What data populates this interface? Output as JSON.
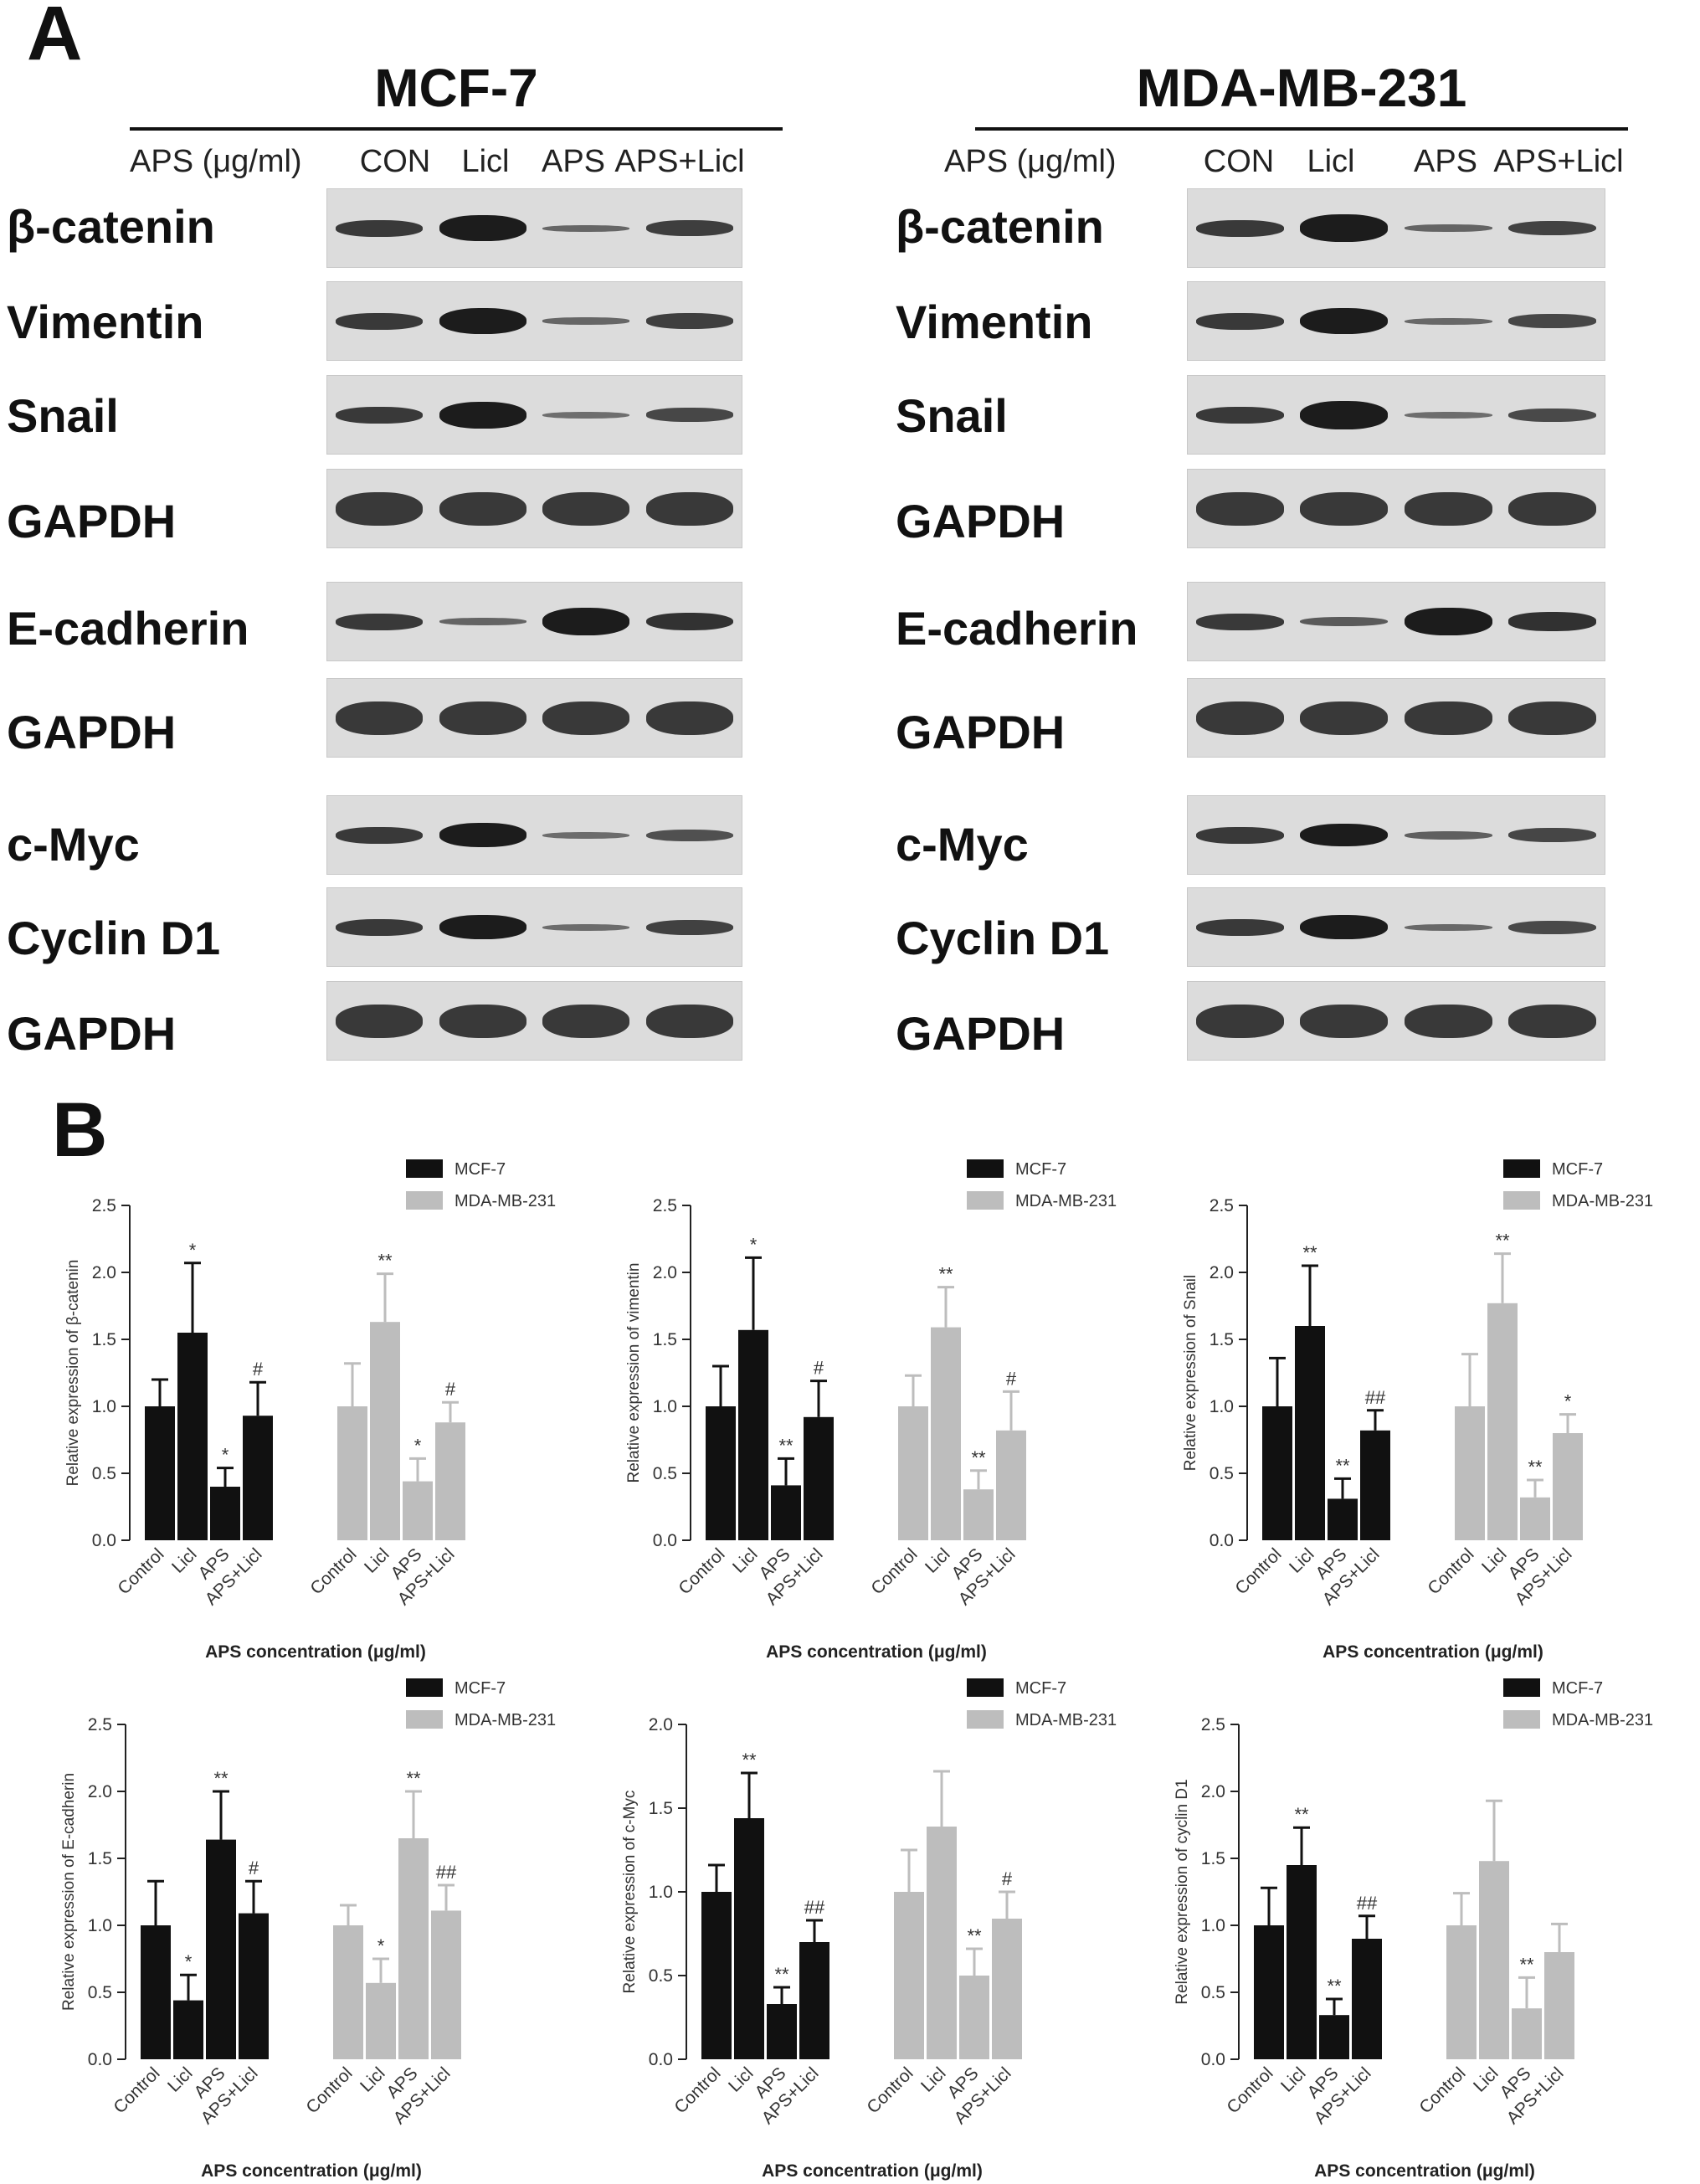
{
  "panel_a": {
    "letter": "A",
    "cells": [
      {
        "title": "MCF-7",
        "aps_label": "APS (μg/ml)",
        "lanes": [
          "CON",
          "Licl",
          "APS",
          "APS+Licl"
        ],
        "groups": [
          {
            "proteins": [
              "β-catenin",
              "Vimentin",
              "Snail",
              "GAPDH"
            ]
          },
          {
            "proteins": [
              "E-cadherin",
              "GAPDH"
            ]
          },
          {
            "proteins": [
              "c-Myc",
              "Cyclin D1",
              "GAPDH"
            ]
          }
        ]
      },
      {
        "title": "MDA-MB-231",
        "aps_label": "APS (μg/ml)",
        "lanes": [
          "CON",
          "Licl",
          "APS",
          "APS+Licl"
        ],
        "groups": [
          {
            "proteins": [
              "β-catenin",
              "Vimentin",
              "Snail",
              "GAPDH"
            ]
          },
          {
            "proteins": [
              "E-cadherin",
              "GAPDH"
            ]
          },
          {
            "proteins": [
              "c-Myc",
              "Cyclin D1",
              "GAPDH"
            ]
          }
        ]
      }
    ],
    "band_intensity": {
      "MCF-7": {
        "β-catenin": [
          1.0,
          1.55,
          0.4,
          0.93
        ],
        "Vimentin": [
          1.0,
          1.57,
          0.41,
          0.92
        ],
        "Snail": [
          1.0,
          1.6,
          0.31,
          0.82
        ],
        "GAPDH": [
          1.0,
          1.0,
          1.0,
          1.0
        ],
        "E-cadherin": [
          1.0,
          0.44,
          1.64,
          1.09
        ],
        "c-Myc": [
          1.0,
          1.44,
          0.33,
          0.7
        ],
        "Cyclin D1": [
          1.0,
          1.45,
          0.33,
          0.9
        ]
      },
      "MDA-MB-231": {
        "β-catenin": [
          1.0,
          1.63,
          0.44,
          0.88
        ],
        "Vimentin": [
          1.0,
          1.59,
          0.38,
          0.82
        ],
        "Snail": [
          1.0,
          1.77,
          0.32,
          0.8
        ],
        "GAPDH": [
          1.0,
          1.0,
          1.0,
          1.0
        ],
        "E-cadherin": [
          1.0,
          0.57,
          1.65,
          1.11
        ],
        "c-Myc": [
          1.0,
          1.39,
          0.5,
          0.84
        ],
        "Cyclin D1": [
          1.0,
          1.48,
          0.38,
          0.8
        ]
      }
    }
  },
  "panel_b": {
    "letter": "B"
  },
  "colors": {
    "MCF-7": "#111111",
    "MDA-MB-231": "#bdbdbd",
    "band": "#1c1c1c",
    "blot_bg": "#dcdcdc"
  },
  "chart_data": [
    {
      "type": "bar",
      "categories": [
        "Control",
        "Licl",
        "APS",
        "APS+Licl"
      ],
      "ylabel": "Relative expression of  β-catenin",
      "xlabel": "APS concentration (μg/ml)",
      "ylim": [
        0,
        2.5
      ],
      "yticks": [
        "0.0",
        "0.5",
        "1.0",
        "1.5",
        "2.0",
        "2.5"
      ],
      "legend": "top-right",
      "series": [
        {
          "name": "MCF-7",
          "values": [
            1.0,
            1.55,
            0.4,
            0.93
          ],
          "errors": [
            0.2,
            0.52,
            0.14,
            0.25
          ],
          "annotations": [
            "",
            "*",
            "*",
            "#"
          ]
        },
        {
          "name": "MDA-MB-231",
          "values": [
            1.0,
            1.63,
            0.44,
            0.88
          ],
          "errors": [
            0.32,
            0.36,
            0.17,
            0.15
          ],
          "annotations": [
            "",
            "**",
            "*",
            "#"
          ]
        }
      ]
    },
    {
      "type": "bar",
      "categories": [
        "Control",
        "Licl",
        "APS",
        "APS+Licl"
      ],
      "ylabel": "Relative expression of  vimentin",
      "xlabel": "APS concentration (μg/ml)",
      "ylim": [
        0,
        2.5
      ],
      "yticks": [
        "0.0",
        "0.5",
        "1.0",
        "1.5",
        "2.0",
        "2.5"
      ],
      "legend": "top-right",
      "series": [
        {
          "name": "MCF-7",
          "values": [
            1.0,
            1.57,
            0.41,
            0.92
          ],
          "errors": [
            0.3,
            0.54,
            0.2,
            0.27
          ],
          "annotations": [
            "",
            "*",
            "**",
            "#"
          ]
        },
        {
          "name": "MDA-MB-231",
          "values": [
            1.0,
            1.59,
            0.38,
            0.82
          ],
          "errors": [
            0.23,
            0.3,
            0.14,
            0.29
          ],
          "annotations": [
            "",
            "**",
            "**",
            "#"
          ]
        }
      ]
    },
    {
      "type": "bar",
      "categories": [
        "Control",
        "Licl",
        "APS",
        "APS+Licl"
      ],
      "ylabel": "Relative expression of  Snail",
      "xlabel": "APS concentration (μg/ml)",
      "ylim": [
        0,
        2.5
      ],
      "yticks": [
        "0.0",
        "0.5",
        "1.0",
        "1.5",
        "2.0",
        "2.5"
      ],
      "legend": "top-right",
      "series": [
        {
          "name": "MCF-7",
          "values": [
            1.0,
            1.6,
            0.31,
            0.82
          ],
          "errors": [
            0.36,
            0.45,
            0.15,
            0.15
          ],
          "annotations": [
            "",
            "**",
            "**",
            "##"
          ]
        },
        {
          "name": "MDA-MB-231",
          "values": [
            1.0,
            1.77,
            0.32,
            0.8
          ],
          "errors": [
            0.39,
            0.37,
            0.13,
            0.14
          ],
          "annotations": [
            "",
            "**",
            "**",
            "*"
          ]
        }
      ]
    },
    {
      "type": "bar",
      "categories": [
        "Control",
        "Licl",
        "APS",
        "APS+Licl"
      ],
      "ylabel": "Relative expression of  E-cadherin",
      "xlabel": "APS concentration (μg/ml)",
      "ylim": [
        0,
        2.5
      ],
      "yticks": [
        "0.0",
        "0.5",
        "1.0",
        "1.5",
        "2.0",
        "2.5"
      ],
      "legend": "top-right",
      "series": [
        {
          "name": "MCF-7",
          "values": [
            1.0,
            0.44,
            1.64,
            1.09
          ],
          "errors": [
            0.33,
            0.19,
            0.36,
            0.24
          ],
          "annotations": [
            "",
            "*",
            "**",
            "#"
          ]
        },
        {
          "name": "MDA-MB-231",
          "values": [
            1.0,
            0.57,
            1.65,
            1.11
          ],
          "errors": [
            0.15,
            0.18,
            0.35,
            0.19
          ],
          "annotations": [
            "",
            "*",
            "**",
            "##"
          ]
        }
      ]
    },
    {
      "type": "bar",
      "categories": [
        "Control",
        "Licl",
        "APS",
        "APS+Licl"
      ],
      "ylabel": "Relative expression of c-Myc",
      "xlabel": "APS concentration (μg/ml)",
      "ylim": [
        0,
        2.0
      ],
      "yticks": [
        "0.0",
        "0.5",
        "1.0",
        "1.5",
        "2.0"
      ],
      "legend": "top-right",
      "series": [
        {
          "name": "MCF-7",
          "values": [
            1.0,
            1.44,
            0.33,
            0.7
          ],
          "errors": [
            0.16,
            0.27,
            0.1,
            0.13
          ],
          "annotations": [
            "",
            "**",
            "**",
            "##"
          ]
        },
        {
          "name": "MDA-MB-231",
          "values": [
            1.0,
            1.39,
            0.5,
            0.84
          ],
          "errors": [
            0.25,
            0.33,
            0.16,
            0.16
          ],
          "annotations": [
            "",
            "",
            "**",
            "#"
          ]
        }
      ]
    },
    {
      "type": "bar",
      "categories": [
        "Control",
        "Licl",
        "APS",
        "APS+Licl"
      ],
      "ylabel": "Relative expression of cyclin D1",
      "xlabel": "APS concentration (μg/ml)",
      "ylim": [
        0,
        2.5
      ],
      "yticks": [
        "0.0",
        "0.5",
        "1.0",
        "1.5",
        "2.0",
        "2.5"
      ],
      "legend": "top-right",
      "series": [
        {
          "name": "MCF-7",
          "values": [
            1.0,
            1.45,
            0.33,
            0.9
          ],
          "errors": [
            0.28,
            0.28,
            0.12,
            0.17
          ],
          "annotations": [
            "",
            "**",
            "**",
            "##"
          ]
        },
        {
          "name": "MDA-MB-231",
          "values": [
            1.0,
            1.48,
            0.38,
            0.8
          ],
          "errors": [
            0.24,
            0.45,
            0.23,
            0.21
          ],
          "annotations": [
            "",
            "",
            "**",
            ""
          ]
        }
      ]
    }
  ]
}
